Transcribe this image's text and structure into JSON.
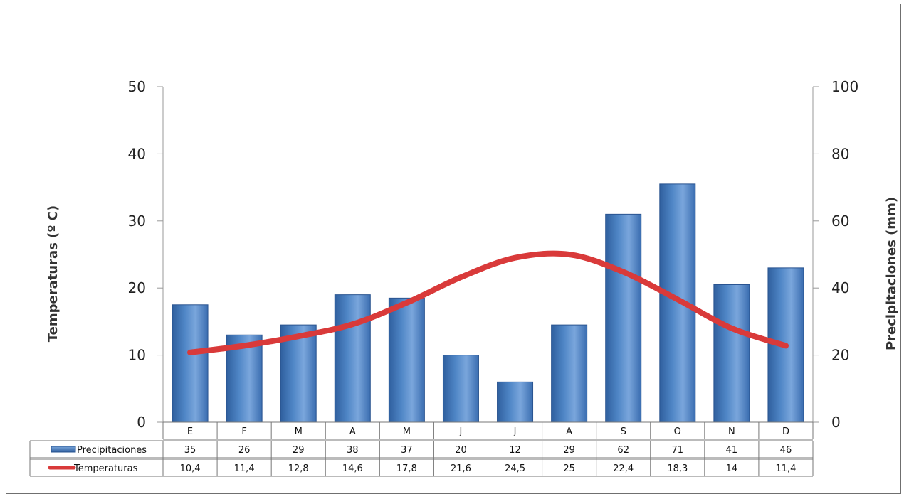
{
  "chart_data": {
    "type": "bar",
    "categories": [
      "E",
      "F",
      "M",
      "A",
      "M",
      "J",
      "J",
      "A",
      "S",
      "O",
      "N",
      "D"
    ],
    "series": [
      {
        "name": "Precipitaciones",
        "type": "bar",
        "axis": "right",
        "values": [
          35,
          26,
          29,
          38,
          37,
          20,
          12,
          29,
          62,
          71,
          41,
          46
        ],
        "labels": [
          "35",
          "26",
          "29",
          "38",
          "37",
          "20",
          "12",
          "29",
          "62",
          "71",
          "41",
          "46"
        ],
        "color": "#4f86c6"
      },
      {
        "name": "Temperaturas",
        "type": "line",
        "axis": "left",
        "values": [
          10.4,
          11.4,
          12.8,
          14.6,
          17.8,
          21.6,
          24.5,
          25,
          22.4,
          18.3,
          14,
          11.4
        ],
        "labels": [
          "10,4",
          "11,4",
          "12,8",
          "14,6",
          "17,8",
          "21,6",
          "24,5",
          "25",
          "22,4",
          "18,3",
          "14",
          "11,4"
        ],
        "color": "#d93a3a"
      }
    ],
    "y_left": {
      "label": "Temperaturas (º C)",
      "lim": [
        0,
        50
      ],
      "ticks": [
        "0",
        "10",
        "20",
        "30",
        "40",
        "50"
      ]
    },
    "y_right": {
      "label": "Precipitaciones (mm)",
      "lim": [
        0,
        100
      ],
      "ticks": [
        "0",
        "20",
        "40",
        "60",
        "80",
        "100"
      ]
    },
    "grid": false,
    "legend": "data-table-left"
  }
}
